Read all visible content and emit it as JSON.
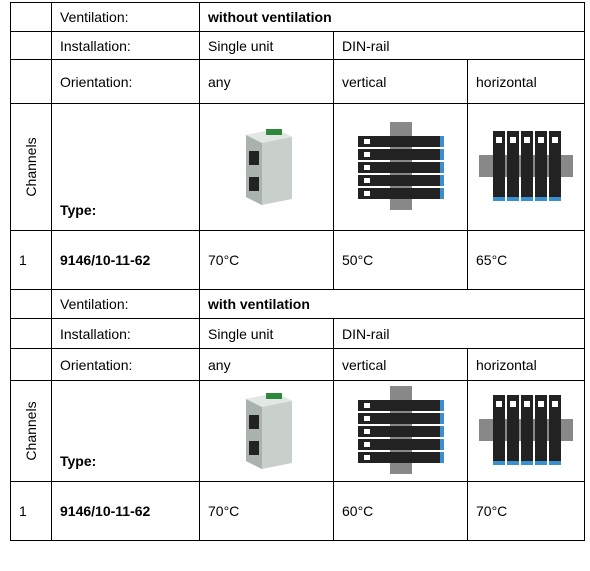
{
  "sections": [
    {
      "ventilation_label": "Ventilation:",
      "ventilation": "without ventilation",
      "installation_label": "Installation:",
      "installation": [
        "Single unit",
        "DIN-rail"
      ],
      "orientation_label": "Orientation:",
      "orientation": [
        "any",
        "vertical",
        "horizontal"
      ],
      "channels_label": "Channels",
      "type_label": "Type:",
      "row": {
        "channels": "1",
        "type": "9146/10-11-62",
        "temps": [
          "70°C",
          "50°C",
          "65°C"
        ]
      }
    },
    {
      "ventilation_label": "Ventilation:",
      "ventilation": "with ventilation",
      "installation_label": "Installation:",
      "installation": [
        "Single unit",
        "DIN-rail"
      ],
      "orientation_label": "Orientation:",
      "orientation": [
        "any",
        "vertical",
        "horizontal"
      ],
      "channels_label": "Channels",
      "type_label": "Type:",
      "row": {
        "channels": "1",
        "type": "9146/10-11-62",
        "temps": [
          "70°C",
          "60°C",
          "70°C"
        ]
      }
    }
  ]
}
